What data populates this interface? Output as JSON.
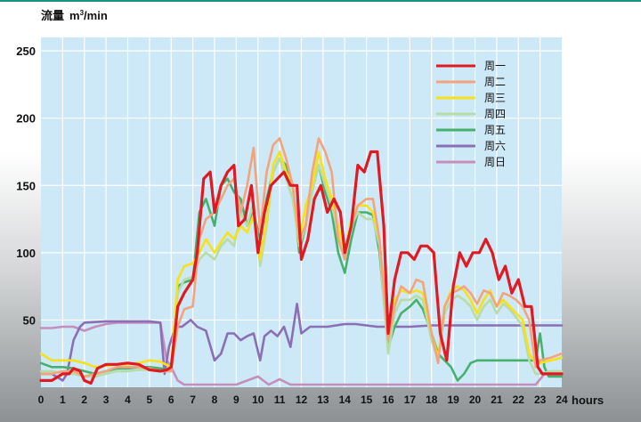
{
  "chart_data": {
    "type": "line",
    "ylabel": "流量 m³/min",
    "ylabel_main": "流量",
    "ylabel_unit_base": "m",
    "ylabel_unit_sup": "3",
    "ylabel_unit_rest": "/min",
    "xlabel": "hours",
    "xlim": [
      0,
      24
    ],
    "ylim": [
      0,
      260
    ],
    "yticks": [
      50,
      100,
      150,
      200,
      250
    ],
    "xticks": [
      0,
      1,
      2,
      3,
      4,
      5,
      6,
      7,
      8,
      9,
      10,
      11,
      12,
      13,
      14,
      15,
      16,
      17,
      18,
      19,
      20,
      21,
      22,
      23,
      24
    ],
    "grid": true,
    "legend_position": "top-right",
    "series": [
      {
        "name": "周一",
        "color": "#e01a22",
        "x": [
          0,
          0.5,
          1,
          1.3,
          1.5,
          1.8,
          2,
          2.3,
          2.6,
          3,
          3.5,
          4,
          4.5,
          5,
          5.5,
          5.8,
          6,
          6.3,
          6.6,
          7,
          7.2,
          7.5,
          7.8,
          8,
          8.3,
          8.6,
          8.9,
          9.1,
          9.4,
          9.7,
          10,
          10.3,
          10.6,
          10.9,
          11.2,
          11.5,
          11.8,
          12,
          12.3,
          12.6,
          12.9,
          13.2,
          13.5,
          13.8,
          14,
          14.3,
          14.6,
          14.9,
          15.2,
          15.5,
          15.8,
          16,
          16.3,
          16.6,
          16.9,
          17.2,
          17.5,
          17.8,
          18.1,
          18.4,
          18.7,
          19,
          19.3,
          19.6,
          19.9,
          20.2,
          20.5,
          20.8,
          21.1,
          21.4,
          21.7,
          22,
          22.3,
          22.6,
          22.9,
          23.1,
          23.5,
          24
        ],
        "y": [
          5,
          5,
          10,
          10,
          14,
          12,
          5,
          3,
          14,
          17,
          17,
          18,
          17,
          13,
          12,
          13,
          15,
          60,
          70,
          80,
          100,
          155,
          160,
          130,
          150,
          160,
          165,
          120,
          125,
          150,
          100,
          130,
          150,
          155,
          160,
          150,
          150,
          95,
          110,
          140,
          150,
          130,
          140,
          130,
          100,
          120,
          165,
          160,
          175,
          175,
          120,
          40,
          80,
          100,
          100,
          95,
          105,
          105,
          100,
          40,
          20,
          75,
          100,
          90,
          100,
          100,
          110,
          100,
          80,
          90,
          70,
          80,
          60,
          60,
          15,
          10,
          10,
          10
        ]
      },
      {
        "name": "周二",
        "color": "#f3a47c",
        "x": [
          0,
          0.5,
          1,
          1.5,
          2,
          2.5,
          3,
          3.5,
          4,
          4.5,
          5,
          5.5,
          6,
          6.3,
          6.6,
          7,
          7.3,
          7.6,
          8,
          8.3,
          8.6,
          8.9,
          9.2,
          9.5,
          9.8,
          10.1,
          10.4,
          10.7,
          11,
          11.3,
          11.6,
          11.9,
          12.2,
          12.5,
          12.8,
          13.1,
          13.4,
          13.7,
          14,
          14.3,
          14.6,
          15,
          15.3,
          15.6,
          16,
          16.3,
          16.6,
          17,
          17.3,
          17.6,
          18,
          18.3,
          18.6,
          18.9,
          19.2,
          19.5,
          19.8,
          20.1,
          20.4,
          20.7,
          21,
          21.3,
          21.6,
          21.9,
          22.2,
          22.5,
          22.8,
          23,
          23.5,
          24
        ],
        "y": [
          10,
          10,
          12,
          12,
          8,
          10,
          12,
          15,
          15,
          15,
          14,
          12,
          12,
          45,
          58,
          60,
          110,
          125,
          130,
          140,
          150,
          155,
          130,
          150,
          178,
          115,
          160,
          180,
          185,
          170,
          150,
          110,
          120,
          160,
          185,
          175,
          160,
          110,
          95,
          120,
          135,
          140,
          140,
          110,
          35,
          60,
          75,
          70,
          80,
          78,
          40,
          18,
          60,
          70,
          72,
          75,
          70,
          62,
          72,
          70,
          60,
          70,
          68,
          65,
          60,
          50,
          15,
          20,
          22,
          25
        ]
      },
      {
        "name": "周三",
        "color": "#f7e11b",
        "x": [
          0,
          0.5,
          1,
          1.5,
          2,
          2.5,
          3,
          3.5,
          4,
          4.5,
          5,
          5.5,
          6,
          6.3,
          6.6,
          7,
          7.3,
          7.6,
          8,
          8.3,
          8.6,
          8.9,
          9.2,
          9.5,
          9.8,
          10.1,
          10.4,
          10.7,
          11,
          11.3,
          11.6,
          11.9,
          12.2,
          12.5,
          12.8,
          13.1,
          13.4,
          13.7,
          14,
          14.3,
          14.6,
          15,
          15.3,
          15.6,
          16,
          16.3,
          16.6,
          17,
          17.3,
          17.6,
          18,
          18.3,
          18.6,
          18.9,
          19.2,
          19.5,
          19.8,
          20.1,
          20.4,
          20.7,
          21,
          21.3,
          21.6,
          21.9,
          22.2,
          22.5,
          22.8,
          23,
          23.5,
          24
        ],
        "y": [
          25,
          20,
          20,
          20,
          18,
          15,
          16,
          17,
          17,
          18,
          20,
          19,
          15,
          80,
          90,
          92,
          100,
          110,
          100,
          108,
          115,
          110,
          120,
          115,
          128,
          95,
          125,
          165,
          175,
          160,
          150,
          108,
          135,
          150,
          175,
          155,
          140,
          120,
          100,
          125,
          135,
          135,
          130,
          110,
          40,
          65,
          72,
          70,
          72,
          70,
          40,
          22,
          60,
          72,
          75,
          72,
          65,
          55,
          65,
          72,
          60,
          65,
          60,
          55,
          50,
          25,
          18,
          18,
          20,
          22
        ]
      },
      {
        "name": "周四",
        "color": "#b8dca8",
        "x": [
          0,
          0.5,
          1,
          1.5,
          2,
          2.5,
          3,
          3.5,
          4,
          4.5,
          5,
          5.5,
          6,
          6.3,
          6.6,
          7,
          7.3,
          7.6,
          8,
          8.3,
          8.6,
          8.9,
          9.2,
          9.5,
          9.8,
          10.1,
          10.4,
          10.7,
          11,
          11.3,
          11.6,
          11.9,
          12.2,
          12.5,
          12.8,
          13.1,
          13.4,
          13.7,
          14,
          14.3,
          14.6,
          15,
          15.3,
          15.6,
          16,
          16.3,
          16.6,
          17,
          17.3,
          17.6,
          18,
          18.3,
          18.6,
          18.9,
          19.2,
          19.5,
          19.8,
          20.1,
          20.4,
          20.7,
          21,
          21.3,
          21.6,
          21.9,
          22.2,
          22.5,
          22.8,
          23,
          23.5,
          24
        ],
        "y": [
          12,
          12,
          10,
          10,
          8,
          8,
          10,
          12,
          12,
          13,
          13,
          12,
          12,
          70,
          80,
          82,
          95,
          100,
          95,
          105,
          110,
          105,
          130,
          120,
          138,
          90,
          120,
          160,
          170,
          155,
          140,
          105,
          120,
          145,
          165,
          150,
          135,
          115,
          95,
          120,
          130,
          125,
          125,
          105,
          25,
          55,
          65,
          65,
          68,
          65,
          35,
          20,
          55,
          65,
          68,
          65,
          60,
          50,
          60,
          65,
          55,
          62,
          58,
          52,
          45,
          20,
          10,
          10,
          12,
          12
        ]
      },
      {
        "name": "周五",
        "color": "#46b16d",
        "x": [
          0,
          0.5,
          1,
          1.5,
          2,
          2.5,
          3,
          3.5,
          4,
          4.5,
          5,
          5.5,
          6,
          6.3,
          6.6,
          7,
          7.3,
          7.6,
          8,
          8.3,
          8.6,
          8.9,
          9.2,
          9.5,
          9.8,
          10.1,
          10.4,
          10.7,
          11,
          11.3,
          11.6,
          11.9,
          12.2,
          12.5,
          12.8,
          13.1,
          13.4,
          13.7,
          14,
          14.3,
          14.6,
          15,
          15.3,
          15.6,
          16,
          16.3,
          16.6,
          17,
          17.3,
          17.6,
          18,
          18.3,
          18.6,
          18.9,
          19.2,
          19.5,
          19.8,
          20.1,
          20.4,
          20.7,
          21,
          21.3,
          21.6,
          21.9,
          22.2,
          22.5,
          22.8,
          23,
          23.2,
          23.4,
          23.7,
          24
        ],
        "y": [
          18,
          15,
          15,
          14,
          12,
          10,
          12,
          14,
          14,
          15,
          15,
          14,
          13,
          75,
          78,
          80,
          130,
          140,
          120,
          150,
          155,
          145,
          140,
          120,
          130,
          110,
          140,
          160,
          170,
          165,
          150,
          100,
          120,
          150,
          165,
          145,
          130,
          100,
          85,
          110,
          130,
          130,
          128,
          100,
          30,
          45,
          55,
          60,
          65,
          58,
          40,
          25,
          20,
          15,
          5,
          10,
          18,
          20,
          20,
          20,
          20,
          20,
          20,
          20,
          20,
          20,
          20,
          40,
          15,
          8,
          8,
          8
        ]
      },
      {
        "name": "周六",
        "color": "#8a6fb5",
        "x": [
          0,
          0.5,
          1,
          1.2,
          1.5,
          1.8,
          2,
          3,
          4,
          5,
          5.5,
          5.7,
          5.9,
          6.2,
          6.5,
          6.9,
          7.2,
          7.6,
          8,
          8.3,
          8.6,
          8.9,
          9.2,
          9.5,
          9.8,
          10.1,
          10.3,
          10.6,
          10.9,
          11.2,
          11.5,
          11.8,
          12,
          12.4,
          12.8,
          13.2,
          13.6,
          14,
          14.5,
          15,
          15.5,
          16,
          17,
          18,
          19,
          20,
          21,
          22,
          23,
          24
        ],
        "y": [
          10,
          10,
          5,
          10,
          35,
          45,
          48,
          49,
          49,
          49,
          48,
          10,
          30,
          45,
          45,
          50,
          45,
          42,
          20,
          25,
          40,
          40,
          35,
          38,
          40,
          20,
          38,
          42,
          38,
          45,
          30,
          62,
          40,
          45,
          45,
          45,
          46,
          47,
          47,
          46,
          45,
          45,
          45,
          46,
          46,
          46,
          46,
          46,
          46,
          46
        ]
      },
      {
        "name": "周日",
        "color": "#c68fbb",
        "x": [
          0,
          0.5,
          1,
          1.5,
          2,
          2.5,
          3,
          3.5,
          4,
          4.5,
          5,
          5.5,
          5.8,
          6,
          6.3,
          6.6,
          7,
          8,
          9,
          10,
          10.5,
          11,
          11.5,
          12,
          13,
          14,
          15,
          16,
          17,
          18,
          19,
          20,
          21,
          22,
          22.8,
          23.2,
          24
        ],
        "y": [
          44,
          44,
          45,
          45,
          42,
          45,
          47,
          48,
          48,
          48,
          48,
          48,
          20,
          15,
          5,
          2,
          2,
          2,
          2,
          8,
          2,
          6,
          2,
          2,
          2,
          2,
          2,
          2,
          2,
          2,
          2,
          2,
          2,
          2,
          2,
          10,
          10
        ]
      }
    ]
  }
}
